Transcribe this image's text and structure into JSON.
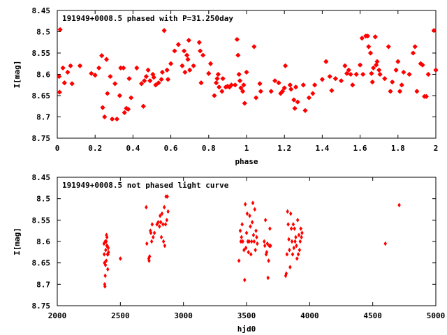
{
  "chart_data": [
    {
      "type": "scatter",
      "title": "191949+0008.5 phased with P=31.250day",
      "xlabel": "phase",
      "ylabel": "I[mag]",
      "xlim": [
        0,
        2
      ],
      "ylim": [
        8.75,
        8.45
      ],
      "y_inverted": true,
      "x_ticks": [
        "0",
        "0.2",
        "0.4",
        "0.6",
        "0.8",
        "1",
        "1.2",
        "1.4",
        "1.6",
        "1.8",
        "2"
      ],
      "y_ticks": [
        "8.45",
        "8.5",
        "8.55",
        "8.6",
        "8.65",
        "8.7",
        "8.75"
      ],
      "marker": "star",
      "color": "#ff0000",
      "points": [
        [
          0.01,
          8.605
        ],
        [
          0.012,
          8.642
        ],
        [
          0.015,
          8.495
        ],
        [
          0.03,
          8.585
        ],
        [
          0.038,
          8.62
        ],
        [
          0.055,
          8.595
        ],
        [
          0.07,
          8.58
        ],
        [
          0.078,
          8.622
        ],
        [
          0.12,
          8.58
        ],
        [
          0.18,
          8.598
        ],
        [
          0.2,
          8.602
        ],
        [
          0.22,
          8.585
        ],
        [
          0.235,
          8.556
        ],
        [
          0.24,
          8.678
        ],
        [
          0.25,
          8.7
        ],
        [
          0.26,
          8.565
        ],
        [
          0.265,
          8.645
        ],
        [
          0.28,
          8.605
        ],
        [
          0.29,
          8.705
        ],
        [
          0.305,
          8.622
        ],
        [
          0.315,
          8.705
        ],
        [
          0.33,
          8.65
        ],
        [
          0.335,
          8.585
        ],
        [
          0.35,
          8.585
        ],
        [
          0.355,
          8.69
        ],
        [
          0.365,
          8.68
        ],
        [
          0.375,
          8.682
        ],
        [
          0.38,
          8.61
        ],
        [
          0.39,
          8.655
        ],
        [
          0.42,
          8.585
        ],
        [
          0.445,
          8.622
        ],
        [
          0.455,
          8.675
        ],
        [
          0.46,
          8.615
        ],
        [
          0.47,
          8.605
        ],
        [
          0.48,
          8.59
        ],
        [
          0.49,
          8.615
        ],
        [
          0.505,
          8.6
        ],
        [
          0.51,
          8.607
        ],
        [
          0.52,
          8.625
        ],
        [
          0.535,
          8.62
        ],
        [
          0.55,
          8.612
        ],
        [
          0.555,
          8.595
        ],
        [
          0.565,
          8.497
        ],
        [
          0.58,
          8.59
        ],
        [
          0.585,
          8.612
        ],
        [
          0.6,
          8.575
        ],
        [
          0.62,
          8.545
        ],
        [
          0.64,
          8.53
        ],
        [
          0.66,
          8.58
        ],
        [
          0.67,
          8.545
        ],
        [
          0.675,
          8.595
        ],
        [
          0.685,
          8.555
        ],
        [
          0.69,
          8.565
        ],
        [
          0.695,
          8.52
        ],
        [
          0.7,
          8.59
        ],
        [
          0.72,
          8.58
        ],
        [
          0.75,
          8.525
        ],
        [
          0.755,
          8.545
        ],
        [
          0.76,
          8.62
        ],
        [
          0.77,
          8.555
        ],
        [
          0.8,
          8.598
        ],
        [
          0.81,
          8.575
        ],
        [
          0.83,
          8.65
        ],
        [
          0.84,
          8.62
        ],
        [
          0.845,
          8.61
        ],
        [
          0.85,
          8.6
        ],
        [
          0.855,
          8.63
        ],
        [
          0.87,
          8.64
        ],
        [
          0.875,
          8.61
        ],
        [
          0.89,
          8.63
        ],
        [
          0.9,
          8.628
        ],
        [
          0.91,
          8.63
        ],
        [
          0.92,
          8.625
        ],
        [
          0.94,
          8.625
        ],
        [
          0.95,
          8.518
        ],
        [
          0.955,
          8.555
        ],
        [
          0.96,
          8.6
        ],
        [
          0.965,
          8.615
        ],
        [
          0.97,
          8.632
        ],
        [
          0.98,
          8.64
        ],
        [
          0.985,
          8.625
        ],
        [
          0.99,
          8.668
        ],
        [
          1.0,
          8.595
        ],
        [
          1.04,
          8.535
        ],
        [
          1.05,
          8.655
        ],
        [
          1.07,
          8.622
        ],
        [
          1.075,
          8.64
        ],
        [
          1.13,
          8.64
        ],
        [
          1.15,
          8.615
        ],
        [
          1.17,
          8.62
        ],
        [
          1.18,
          8.645
        ],
        [
          1.19,
          8.64
        ],
        [
          1.2,
          8.632
        ],
        [
          1.205,
          8.58
        ],
        [
          1.23,
          8.625
        ],
        [
          1.235,
          8.635
        ],
        [
          1.25,
          8.66
        ],
        [
          1.255,
          8.68
        ],
        [
          1.26,
          8.63
        ],
        [
          1.27,
          8.665
        ],
        [
          1.3,
          8.625
        ],
        [
          1.31,
          8.685
        ],
        [
          1.33,
          8.655
        ],
        [
          1.35,
          8.645
        ],
        [
          1.36,
          8.625
        ],
        [
          1.4,
          8.612
        ],
        [
          1.42,
          8.57
        ],
        [
          1.44,
          8.605
        ],
        [
          1.45,
          8.638
        ],
        [
          1.47,
          8.61
        ],
        [
          1.5,
          8.615
        ],
        [
          1.52,
          8.58
        ],
        [
          1.53,
          8.598
        ],
        [
          1.54,
          8.59
        ],
        [
          1.55,
          8.6
        ],
        [
          1.56,
          8.625
        ],
        [
          1.58,
          8.6
        ],
        [
          1.6,
          8.578
        ],
        [
          1.61,
          8.515
        ],
        [
          1.615,
          8.6
        ],
        [
          1.63,
          8.51
        ],
        [
          1.64,
          8.51
        ],
        [
          1.645,
          8.535
        ],
        [
          1.655,
          8.55
        ],
        [
          1.66,
          8.598
        ],
        [
          1.665,
          8.618
        ],
        [
          1.67,
          8.585
        ],
        [
          1.68,
          8.512
        ],
        [
          1.685,
          8.578
        ],
        [
          1.69,
          8.57
        ],
        [
          1.7,
          8.59
        ],
        [
          1.705,
          8.6
        ],
        [
          1.73,
          8.61
        ],
        [
          1.75,
          8.535
        ],
        [
          1.76,
          8.64
        ],
        [
          1.77,
          8.618
        ],
        [
          1.79,
          8.59
        ],
        [
          1.8,
          8.57
        ],
        [
          1.81,
          8.64
        ],
        [
          1.82,
          8.625
        ],
        [
          1.83,
          8.595
        ],
        [
          1.86,
          8.6
        ],
        [
          1.88,
          8.55
        ],
        [
          1.89,
          8.535
        ],
        [
          1.9,
          8.64
        ],
        [
          1.92,
          8.575
        ],
        [
          1.93,
          8.578
        ],
        [
          1.94,
          8.652
        ],
        [
          1.95,
          8.652
        ],
        [
          1.96,
          8.6
        ],
        [
          1.99,
          8.497
        ],
        [
          2.0,
          8.59
        ]
      ]
    },
    {
      "type": "scatter",
      "title": "191949+0008.5 not phased light curve",
      "xlabel": "hjd0",
      "ylabel": "I[mag]",
      "xlim": [
        2000,
        5000
      ],
      "ylim": [
        8.75,
        8.45
      ],
      "y_inverted": true,
      "x_ticks": [
        "2000",
        "2500",
        "3000",
        "3500",
        "4000",
        "4500",
        "5000"
      ],
      "y_ticks": [
        "8.45",
        "8.5",
        "8.55",
        "8.6",
        "8.65",
        "8.7",
        "8.75"
      ],
      "marker": "diamond",
      "color": "#ff0000",
      "points": [
        [
          2370,
          8.605
        ],
        [
          2372,
          8.63
        ],
        [
          2374,
          8.65
        ],
        [
          2376,
          8.7
        ],
        [
          2378,
          8.705
        ],
        [
          2380,
          8.68
        ],
        [
          2382,
          8.655
        ],
        [
          2384,
          8.62
        ],
        [
          2386,
          8.6
        ],
        [
          2388,
          8.6
        ],
        [
          2390,
          8.585
        ],
        [
          2392,
          8.61
        ],
        [
          2394,
          8.59
        ],
        [
          2396,
          8.61
        ],
        [
          2398,
          8.63
        ],
        [
          2400,
          8.665
        ],
        [
          2402,
          8.63
        ],
        [
          2404,
          8.615
        ],
        [
          2406,
          8.625
        ],
        [
          2380,
          8.6
        ],
        [
          2388,
          8.645
        ],
        [
          2500,
          8.64
        ],
        [
          2705,
          8.52
        ],
        [
          2710,
          8.605
        ],
        [
          2725,
          8.64
        ],
        [
          2728,
          8.645
        ],
        [
          2732,
          8.635
        ],
        [
          2738,
          8.575
        ],
        [
          2742,
          8.58
        ],
        [
          2748,
          8.6
        ],
        [
          2752,
          8.56
        ],
        [
          2760,
          8.59
        ],
        [
          2770,
          8.58
        ],
        [
          2790,
          8.56
        ],
        [
          2800,
          8.555
        ],
        [
          2810,
          8.565
        ],
        [
          2815,
          8.54
        ],
        [
          2820,
          8.555
        ],
        [
          2825,
          8.59
        ],
        [
          2830,
          8.535
        ],
        [
          2838,
          8.56
        ],
        [
          2842,
          8.6
        ],
        [
          2848,
          8.52
        ],
        [
          2852,
          8.61
        ],
        [
          2858,
          8.56
        ],
        [
          2862,
          8.495
        ],
        [
          2868,
          8.55
        ],
        [
          2872,
          8.495
        ],
        [
          2878,
          8.53
        ],
        [
          3440,
          8.645
        ],
        [
          3450,
          8.575
        ],
        [
          3455,
          8.6
        ],
        [
          3460,
          8.59
        ],
        [
          3465,
          8.56
        ],
        [
          3470,
          8.6
        ],
        [
          3480,
          8.62
        ],
        [
          3485,
          8.69
        ],
        [
          3490,
          8.513
        ],
        [
          3495,
          8.615
        ],
        [
          3500,
          8.58
        ],
        [
          3505,
          8.535
        ],
        [
          3510,
          8.6
        ],
        [
          3515,
          8.625
        ],
        [
          3520,
          8.6
        ],
        [
          3525,
          8.54
        ],
        [
          3530,
          8.565
        ],
        [
          3535,
          8.63
        ],
        [
          3540,
          8.6
        ],
        [
          3545,
          8.555
        ],
        [
          3550,
          8.51
        ],
        [
          3555,
          8.585
        ],
        [
          3560,
          8.6
        ],
        [
          3565,
          8.525
        ],
        [
          3570,
          8.62
        ],
        [
          3575,
          8.575
        ],
        [
          3580,
          8.59
        ],
        [
          3585,
          8.605
        ],
        [
          3640,
          8.6
        ],
        [
          3645,
          8.61
        ],
        [
          3650,
          8.55
        ],
        [
          3655,
          8.63
        ],
        [
          3660,
          8.625
        ],
        [
          3665,
          8.605
        ],
        [
          3670,
          8.685
        ],
        [
          3675,
          8.645
        ],
        [
          3680,
          8.61
        ],
        [
          3685,
          8.57
        ],
        [
          3690,
          8.61
        ],
        [
          3810,
          8.68
        ],
        [
          3815,
          8.675
        ],
        [
          3820,
          8.63
        ],
        [
          3825,
          8.53
        ],
        [
          3830,
          8.56
        ],
        [
          3835,
          8.595
        ],
        [
          3840,
          8.62
        ],
        [
          3845,
          8.66
        ],
        [
          3850,
          8.535
        ],
        [
          3855,
          8.57
        ],
        [
          3860,
          8.6
        ],
        [
          3865,
          8.63
        ],
        [
          3870,
          8.56
        ],
        [
          3875,
          8.615
        ],
        [
          3880,
          8.57
        ],
        [
          3885,
          8.6
        ],
        [
          3890,
          8.59
        ],
        [
          3895,
          8.61
        ],
        [
          3900,
          8.64
        ],
        [
          3905,
          8.55
        ],
        [
          3910,
          8.63
        ],
        [
          3915,
          8.585
        ],
        [
          3920,
          8.62
        ],
        [
          3925,
          8.6
        ],
        [
          3930,
          8.57
        ],
        [
          3935,
          8.59
        ],
        [
          3940,
          8.58
        ],
        [
          4600,
          8.605
        ],
        [
          4710,
          8.515
        ]
      ]
    }
  ]
}
